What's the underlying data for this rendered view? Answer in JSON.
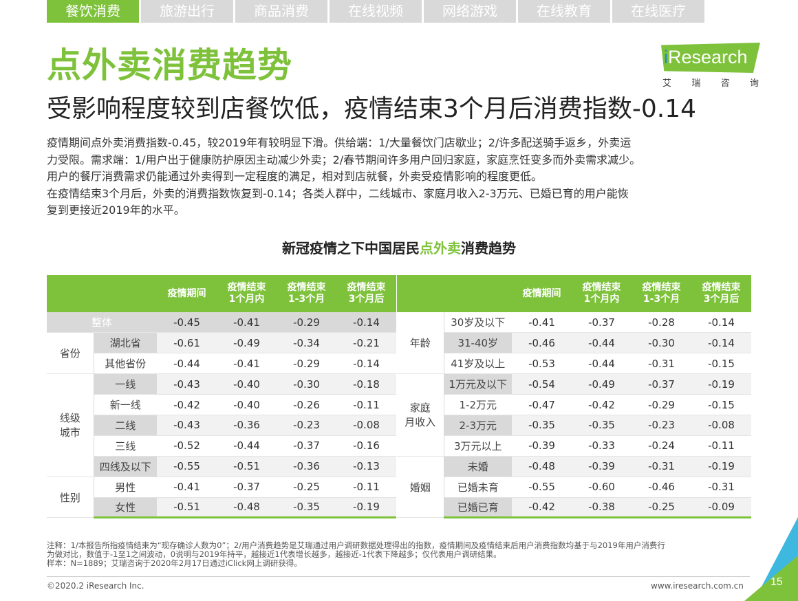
{
  "tabs": [
    "餐饮消费",
    "旅游出行",
    "商品消费",
    "在线视频",
    "网络游戏",
    "在线教育",
    "在线医疗"
  ],
  "active_tab": "餐饮消费",
  "logo": {
    "brand_i": "i",
    "brand_rest": "Research",
    "cn": [
      "艾",
      "瑞",
      "咨",
      "询"
    ]
  },
  "title": "点外卖消费趋势",
  "subtitle": "受影响程度较到店餐饮低，疫情结束3个月后消费指数-0.14",
  "description": [
    "疫情期间点外卖消费指数-0.45，较2019年有较明显下滑。供给端：1/大量餐饮门店歇业；2/许多配送骑手返乡，外卖运",
    "力受限。需求端：1/用户出于健康防护原因主动减少外卖；2/春节期间许多用户回归家庭，家庭烹饪变多而外卖需求减少。",
    "用户的餐厅消费需求仍能通过外卖得到一定程度的满足，相对到店就餐，外卖受疫情影响的程度更低。",
    "在疫情结束3个月后，外卖的消费指数恢复到-0.14；各类人群中，二线城市、家庭月收入2-3万元、已婚已育的用户能恢",
    "复到更接近2019年的水平。"
  ],
  "table_title": {
    "prefix": "新冠疫情之下中国居民",
    "highlight": "点外卖",
    "suffix": "消费趋势"
  },
  "columns": [
    "疫情期间",
    "疫情结束\n1个月内",
    "疫情结束\n1-3个月",
    "疫情结束\n3个月后"
  ],
  "left_table": {
    "overall": {
      "label": "整体",
      "values": [
        "-0.45",
        "-0.41",
        "-0.29",
        "-0.14"
      ]
    },
    "groups": [
      {
        "group": "省份",
        "rows": [
          {
            "label": "湖北省",
            "values": [
              "-0.61",
              "-0.49",
              "-0.34",
              "-0.21"
            ]
          },
          {
            "label": "其他省份",
            "values": [
              "-0.44",
              "-0.41",
              "-0.29",
              "-0.14"
            ]
          }
        ]
      },
      {
        "group": "线级\n城市",
        "rows": [
          {
            "label": "一线",
            "values": [
              "-0.43",
              "-0.40",
              "-0.30",
              "-0.18"
            ]
          },
          {
            "label": "新一线",
            "values": [
              "-0.42",
              "-0.40",
              "-0.26",
              "-0.11"
            ]
          },
          {
            "label": "二线",
            "values": [
              "-0.43",
              "-0.36",
              "-0.23",
              "-0.08"
            ]
          },
          {
            "label": "三线",
            "values": [
              "-0.52",
              "-0.44",
              "-0.37",
              "-0.16"
            ]
          },
          {
            "label": "四线及以下",
            "values": [
              "-0.55",
              "-0.51",
              "-0.36",
              "-0.13"
            ]
          }
        ]
      },
      {
        "group": "性别",
        "rows": [
          {
            "label": "男性",
            "values": [
              "-0.41",
              "-0.37",
              "-0.25",
              "-0.11"
            ]
          },
          {
            "label": "女性",
            "values": [
              "-0.51",
              "-0.48",
              "-0.35",
              "-0.19"
            ]
          }
        ]
      }
    ]
  },
  "right_table": {
    "groups": [
      {
        "group": "年龄",
        "rows": [
          {
            "label": "30岁及以下",
            "values": [
              "-0.41",
              "-0.37",
              "-0.28",
              "-0.14"
            ]
          },
          {
            "label": "31-40岁",
            "values": [
              "-0.46",
              "-0.44",
              "-0.30",
              "-0.14"
            ]
          },
          {
            "label": "41岁及以上",
            "values": [
              "-0.53",
              "-0.44",
              "-0.31",
              "-0.15"
            ]
          }
        ]
      },
      {
        "group": "家庭\n月收入",
        "rows": [
          {
            "label": "1万元及以下",
            "values": [
              "-0.54",
              "-0.49",
              "-0.37",
              "-0.19"
            ]
          },
          {
            "label": "1-2万元",
            "values": [
              "-0.47",
              "-0.42",
              "-0.29",
              "-0.15"
            ]
          },
          {
            "label": "2-3万元",
            "values": [
              "-0.35",
              "-0.35",
              "-0.23",
              "-0.08"
            ]
          },
          {
            "label": "3万元以上",
            "values": [
              "-0.39",
              "-0.33",
              "-0.24",
              "-0.11"
            ]
          }
        ]
      },
      {
        "group": "婚姻",
        "rows": [
          {
            "label": "未婚",
            "values": [
              "-0.48",
              "-0.39",
              "-0.31",
              "-0.19"
            ]
          },
          {
            "label": "已婚未育",
            "values": [
              "-0.55",
              "-0.60",
              "-0.46",
              "-0.31"
            ]
          },
          {
            "label": "已婚已育",
            "values": [
              "-0.42",
              "-0.38",
              "-0.25",
              "-0.09"
            ]
          }
        ]
      }
    ]
  },
  "notes": [
    "注释：1/本报告所指疫情结束为“现存确诊人数为0”；2/用户消费趋势是艾瑞通过用户调研数据处理得出的指数，疫情期间及疫情结束后用户消费指数均基于与2019年用户消费行",
    "为做对比，数值于-1至1之间波动，0说明与2019年持平，越接近1代表增长越多，越接近-1代表下降越多；仅代表用户调研结果。",
    "样本：N=1889；艾瑞咨询于2020年2月17日通过iClick网上调研获得。"
  ],
  "copyright": "©2020.2 iResearch Inc.",
  "website": "www.iresearch.com.cn",
  "page_number": "15",
  "colors": {
    "accent_green": "#7ec23b",
    "accent_blue": "#3fb8e0",
    "row_gray": "#d9d9d9"
  }
}
